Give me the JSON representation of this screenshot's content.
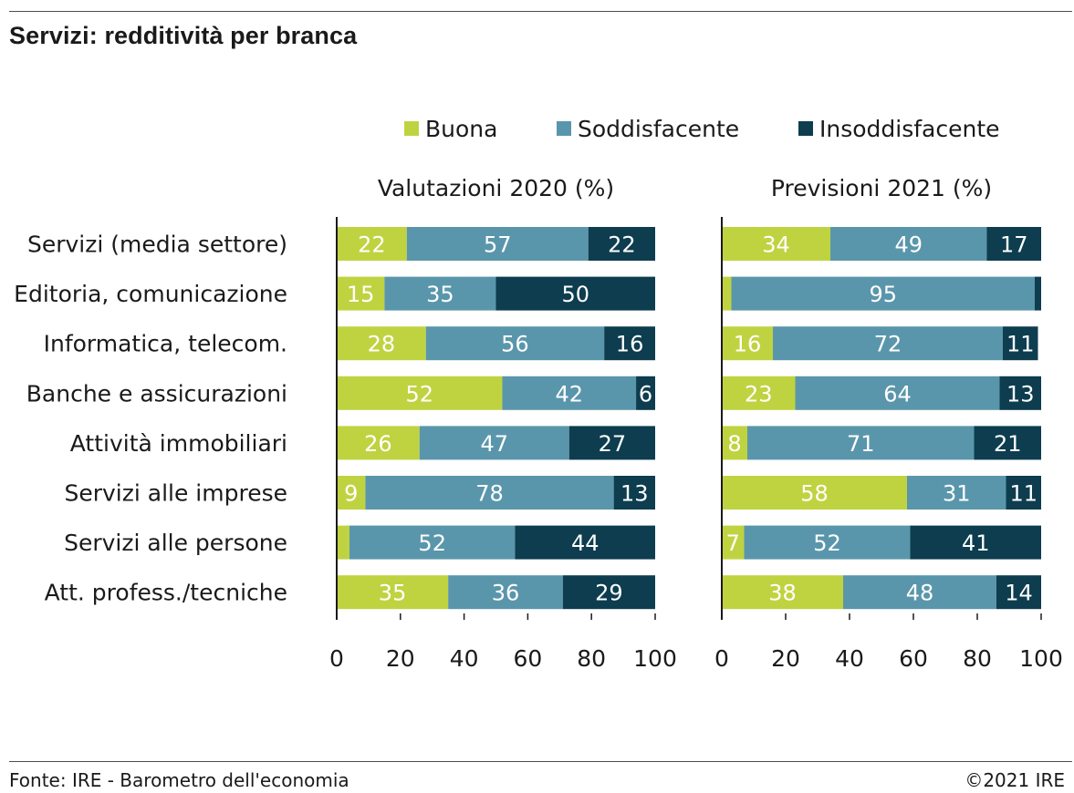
{
  "title": "Servizi: redditività per branca",
  "source": "Fonte: IRE - Barometro dell'economia",
  "copyright": "©2021 IRE",
  "colors": {
    "Buona": "#bfd341",
    "Soddisfacente": "#5a96ab",
    "Insoddisfacente": "#0d3d4f",
    "label_dark_bg": "#ffffff",
    "label_light_bg": "#ffffff"
  },
  "chart_data": [
    {
      "type": "bar",
      "orientation": "horizontal",
      "stacked": true,
      "title": "Valutazioni 2020 (%)",
      "categories": [
        "Servizi (media settore)",
        "Editoria, comunicazione",
        "Informatica, telecom.",
        "Banche e assicurazioni",
        "Attività immobiliari",
        "Servizi alle imprese",
        "Servizi alle persone",
        "Att. profess./tecniche"
      ],
      "series": [
        {
          "name": "Buona",
          "values": [
            22,
            15,
            28,
            52,
            26,
            9,
            4,
            35
          ],
          "labels": [
            "22",
            "15",
            "28",
            "52",
            "26",
            "9",
            "",
            "35"
          ]
        },
        {
          "name": "Soddisfacente",
          "values": [
            57,
            35,
            56,
            42,
            47,
            78,
            52,
            36
          ],
          "labels": [
            "57",
            "35",
            "56",
            "42",
            "47",
            "78",
            "52",
            "36"
          ]
        },
        {
          "name": "Insoddisfacente",
          "values": [
            22,
            50,
            16,
            6,
            27,
            13,
            44,
            29
          ],
          "labels": [
            "22",
            "50",
            "16",
            "6",
            "27",
            "13",
            "44",
            "29"
          ]
        }
      ],
      "xlim": [
        0,
        100
      ],
      "xticks": [
        "0",
        "20",
        "40",
        "60",
        "80",
        "100"
      ],
      "grid": false,
      "legend": "top"
    },
    {
      "type": "bar",
      "orientation": "horizontal",
      "stacked": true,
      "title": "Previsioni 2021 (%)",
      "categories": [
        "Servizi (media settore)",
        "Editoria, comunicazione",
        "Informatica, telecom.",
        "Banche e assicurazioni",
        "Attività immobiliari",
        "Servizi alle imprese",
        "Servizi alle persone",
        "Att. profess./tecniche"
      ],
      "series": [
        {
          "name": "Buona",
          "values": [
            34,
            3,
            16,
            23,
            8,
            58,
            7,
            38
          ],
          "labels": [
            "34",
            "",
            "16",
            "23",
            "8",
            "58",
            "7",
            "38"
          ]
        },
        {
          "name": "Soddisfacente",
          "values": [
            49,
            95,
            72,
            64,
            71,
            31,
            52,
            48
          ],
          "labels": [
            "49",
            "95",
            "72",
            "64",
            "71",
            "31",
            "52",
            "48"
          ]
        },
        {
          "name": "Insoddisfacente",
          "values": [
            17,
            2,
            11,
            13,
            21,
            11,
            41,
            14
          ],
          "labels": [
            "17",
            "",
            "11",
            "13",
            "21",
            "11",
            "41",
            "14"
          ]
        }
      ],
      "xlim": [
        0,
        100
      ],
      "xticks": [
        "0",
        "20",
        "40",
        "60",
        "80",
        "100"
      ],
      "grid": false,
      "legend": "top"
    }
  ]
}
